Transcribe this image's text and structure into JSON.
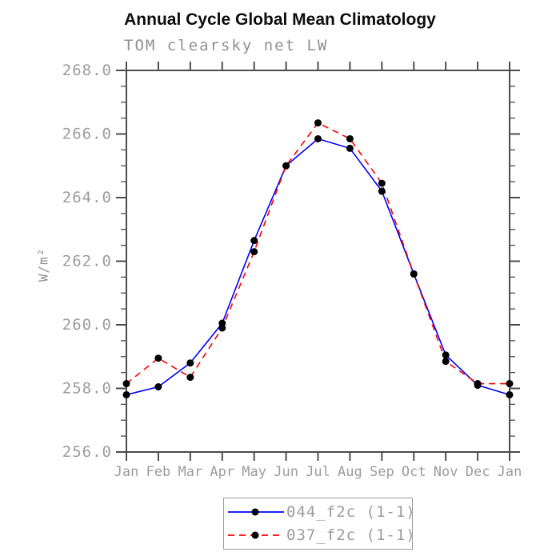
{
  "chart_data": {
    "type": "line",
    "title": "Annual Cycle Global Mean Climatology",
    "subtitle": "TOM clearsky net LW",
    "ylabel": "W/m²",
    "xlabel": "",
    "x_tick_labels": [
      "Jan",
      "Feb",
      "Mar",
      "Apr",
      "May",
      "Jun",
      "Jul",
      "Aug",
      "Sep",
      "Oct",
      "Nov",
      "Dec",
      "Jan"
    ],
    "y_ticks": [
      256.0,
      258.0,
      260.0,
      262.0,
      264.0,
      266.0,
      268.0
    ],
    "y_tick_labels": [
      "256.0",
      "258.0",
      "260.0",
      "262.0",
      "264.0",
      "266.0",
      "268.0"
    ],
    "ylim": [
      256.0,
      268.0
    ],
    "y_minor_step": 0.5,
    "grid": false,
    "legend_position": "bottom-center",
    "axis_color": "#4c4c4c",
    "label_color": "#9c9c9c",
    "series": [
      {
        "name": "044_f2c (1-1)",
        "color": "#0000ff",
        "line_style": "solid",
        "marker": "filled-circle",
        "marker_color": "#000000",
        "values": [
          257.8,
          258.05,
          258.8,
          260.05,
          262.65,
          265.0,
          265.85,
          265.55,
          264.2,
          261.6,
          259.05,
          258.1,
          257.8
        ]
      },
      {
        "name": "037_f2c (1-1)",
        "color": "#ff0000",
        "line_style": "dashed",
        "marker": "filled-circle",
        "marker_color": "#000000",
        "values": [
          258.15,
          258.95,
          258.35,
          259.9,
          262.3,
          265.0,
          266.35,
          265.85,
          264.45,
          261.6,
          258.85,
          258.15,
          258.15
        ]
      }
    ]
  }
}
